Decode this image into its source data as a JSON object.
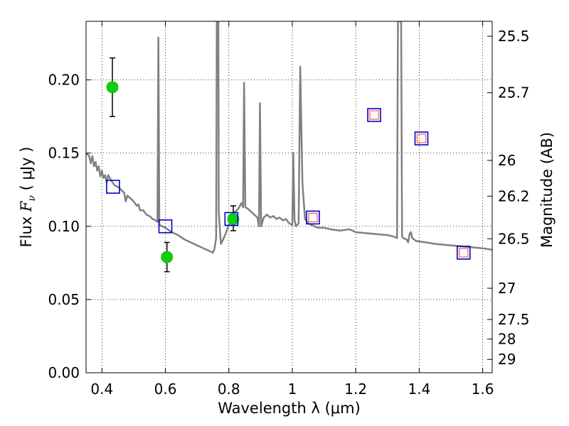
{
  "chart_data": {
    "type": "scatter",
    "xlabel": "Wavelength  λ (μm)",
    "ylabel": "Flux  F_ν  ( μJy )",
    "ylabel_parts": {
      "pre": "Flux  ",
      "var": "F",
      "sub": "ν",
      "post": "  ( μJy )"
    },
    "y2label": "Magnitude (AB)",
    "xlim": [
      0.35,
      1.63
    ],
    "ylim": [
      0.0,
      0.24
    ],
    "grid": true,
    "xticks": [
      0.4,
      0.6,
      0.8,
      1.0,
      1.2,
      1.4,
      1.6
    ],
    "xtick_labels": [
      "0.4",
      "0.6",
      "0.8",
      "1",
      "1.2",
      "1.4",
      "1.6"
    ],
    "yticks": [
      0.0,
      0.05,
      0.1,
      0.15,
      0.2
    ],
    "ytick_labels": [
      "0.00",
      "0.05",
      "0.10",
      "0.15",
      "0.20"
    ],
    "y2ticks": [
      {
        "label": "25.5",
        "flux": 0.2298
      },
      {
        "label": "25.7",
        "flux": 0.1912
      },
      {
        "label": "26",
        "flux": 0.145
      },
      {
        "label": "26.2",
        "flux": 0.1206
      },
      {
        "label": "26.5",
        "flux": 0.0915
      },
      {
        "label": "27",
        "flux": 0.0577
      },
      {
        "label": "27.5",
        "flux": 0.0364
      },
      {
        "label": "28",
        "flux": 0.023
      },
      {
        "label": "29",
        "flux": 0.0091
      }
    ],
    "series": [
      {
        "kind": "spectrum",
        "color": "#808080",
        "points": [
          [
            0.35,
            0.15
          ],
          [
            0.36,
            0.148
          ],
          [
            0.365,
            0.143
          ],
          [
            0.37,
            0.148
          ],
          [
            0.375,
            0.141
          ],
          [
            0.38,
            0.144
          ],
          [
            0.385,
            0.138
          ],
          [
            0.39,
            0.141
          ],
          [
            0.395,
            0.134
          ],
          [
            0.4,
            0.138
          ],
          [
            0.405,
            0.133
          ],
          [
            0.41,
            0.135
          ],
          [
            0.415,
            0.13
          ],
          [
            0.42,
            0.135
          ],
          [
            0.43,
            0.131
          ],
          [
            0.44,
            0.128
          ],
          [
            0.45,
            0.127
          ],
          [
            0.46,
            0.125
          ],
          [
            0.47,
            0.123
          ],
          [
            0.475,
            0.117
          ],
          [
            0.48,
            0.121
          ],
          [
            0.49,
            0.119
          ],
          [
            0.5,
            0.117
          ],
          [
            0.51,
            0.114
          ],
          [
            0.515,
            0.115
          ],
          [
            0.52,
            0.111
          ],
          [
            0.53,
            0.111
          ],
          [
            0.54,
            0.108
          ],
          [
            0.55,
            0.107
          ],
          [
            0.56,
            0.105
          ],
          [
            0.57,
            0.104
          ],
          [
            0.575,
            0.103
          ],
          [
            0.578,
            0.229
          ],
          [
            0.581,
            0.101
          ],
          [
            0.59,
            0.1
          ],
          [
            0.6,
            0.099
          ],
          [
            0.62,
            0.096
          ],
          [
            0.64,
            0.094
          ],
          [
            0.66,
            0.091
          ],
          [
            0.68,
            0.089
          ],
          [
            0.7,
            0.087
          ],
          [
            0.72,
            0.085
          ],
          [
            0.74,
            0.083
          ],
          [
            0.75,
            0.082
          ],
          [
            0.755,
            0.085
          ],
          [
            0.76,
            0.092
          ],
          [
            0.762,
            0.24
          ],
          [
            0.767,
            0.24
          ],
          [
            0.768,
            0.11
          ],
          [
            0.775,
            0.088
          ],
          [
            0.78,
            0.09
          ],
          [
            0.79,
            0.095
          ],
          [
            0.8,
            0.101
          ],
          [
            0.81,
            0.107
          ],
          [
            0.82,
            0.11
          ],
          [
            0.83,
            0.112
          ],
          [
            0.835,
            0.114
          ],
          [
            0.84,
            0.116
          ],
          [
            0.845,
            0.113
          ],
          [
            0.848,
            0.198
          ],
          [
            0.852,
            0.113
          ],
          [
            0.86,
            0.112
          ],
          [
            0.87,
            0.11
          ],
          [
            0.88,
            0.108
          ],
          [
            0.89,
            0.106
          ],
          [
            0.895,
            0.1
          ],
          [
            0.898,
            0.184
          ],
          [
            0.902,
            0.1
          ],
          [
            0.91,
            0.106
          ],
          [
            0.92,
            0.108
          ],
          [
            0.93,
            0.106
          ],
          [
            0.94,
            0.107
          ],
          [
            0.95,
            0.105
          ],
          [
            0.96,
            0.106
          ],
          [
            0.97,
            0.104
          ],
          [
            0.98,
            0.105
          ],
          [
            0.99,
            0.102
          ],
          [
            1.0,
            0.101
          ],
          [
            1.003,
            0.15
          ],
          [
            1.007,
            0.104
          ],
          [
            1.012,
            0.1
          ],
          [
            1.02,
            0.102
          ],
          [
            1.025,
            0.209
          ],
          [
            1.032,
            0.13
          ],
          [
            1.04,
            0.105
          ],
          [
            1.05,
            0.102
          ],
          [
            1.08,
            0.099
          ],
          [
            1.1,
            0.099
          ],
          [
            1.12,
            0.098
          ],
          [
            1.15,
            0.097
          ],
          [
            1.18,
            0.098
          ],
          [
            1.2,
            0.096
          ],
          [
            1.25,
            0.095
          ],
          [
            1.3,
            0.094
          ],
          [
            1.32,
            0.093
          ],
          [
            1.33,
            0.092
          ],
          [
            1.333,
            0.24
          ],
          [
            1.343,
            0.24
          ],
          [
            1.346,
            0.093
          ],
          [
            1.35,
            0.092
          ],
          [
            1.36,
            0.091
          ],
          [
            1.365,
            0.089
          ],
          [
            1.37,
            0.095
          ],
          [
            1.374,
            0.096
          ],
          [
            1.378,
            0.092
          ],
          [
            1.39,
            0.09
          ],
          [
            1.42,
            0.089
          ],
          [
            1.45,
            0.088
          ],
          [
            1.5,
            0.087
          ],
          [
            1.55,
            0.086
          ],
          [
            1.6,
            0.085
          ],
          [
            1.63,
            0.084
          ]
        ]
      },
      {
        "kind": "observed",
        "color": "#11cc11",
        "points": [
          {
            "x": 0.433,
            "y": 0.195,
            "err": [
              0.175,
              0.215
            ]
          },
          {
            "x": 0.605,
            "y": 0.079,
            "err": [
              0.069,
              0.089
            ]
          },
          {
            "x": 0.814,
            "y": 0.105,
            "err": [
              0.097,
              0.114
            ]
          }
        ]
      },
      {
        "kind": "model_photometry",
        "color": "#0000cc",
        "points": [
          {
            "x": 0.435,
            "y": 0.127
          },
          {
            "x": 0.6,
            "y": 0.1
          },
          {
            "x": 0.808,
            "y": 0.105
          },
          {
            "x": 1.065,
            "y": 0.106
          },
          {
            "x": 1.258,
            "y": 0.176
          },
          {
            "x": 1.407,
            "y": 0.16
          },
          {
            "x": 1.54,
            "y": 0.082
          }
        ]
      },
      {
        "kind": "model_photometry_inner",
        "color": "#ff5555",
        "points": [
          {
            "x": 1.065,
            "y": 0.106
          },
          {
            "x": 1.258,
            "y": 0.176
          },
          {
            "x": 1.407,
            "y": 0.16
          },
          {
            "x": 1.54,
            "y": 0.082
          }
        ]
      }
    ]
  }
}
